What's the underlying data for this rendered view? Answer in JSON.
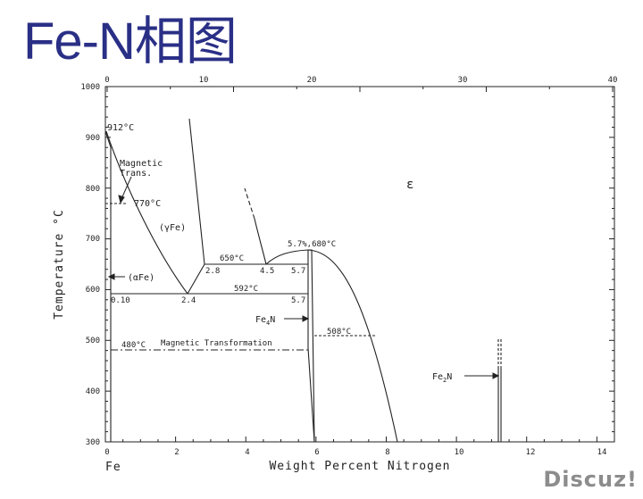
{
  "slide": {
    "title": "Fe-N相图",
    "watermark": "Discuz!"
  },
  "diagram": {
    "y_axis_title": "Temperature °C",
    "x_axis_title": "Weight Percent Nitrogen",
    "x_axis_left_label": "Fe",
    "x_bottom_ticks": [
      "0",
      "2",
      "4",
      "6",
      "8",
      "10",
      "12",
      "14"
    ],
    "x_top_ticks": [
      "0",
      "10",
      "20",
      "30",
      "40"
    ],
    "y_ticks": [
      "300",
      "400",
      "500",
      "600",
      "700",
      "800",
      "900",
      "1000"
    ],
    "labels": {
      "t912": "912°C",
      "magnetic_trans_1": "Magnetic",
      "magnetic_trans_2": "Trans.",
      "t770": "770°C",
      "gamma_fe": "(γFe)",
      "alpha_fe": "(αFe)",
      "epsilon": "ε",
      "t650": "650°C",
      "c28": "2.8",
      "c45": "4.5",
      "c57a": "5.7",
      "eutectoid_top": "5.7%,680°C",
      "c010": "0.10",
      "c24": "2.4",
      "t592": "592°C",
      "c57b": "5.7",
      "fe4n_main": "Fe",
      "fe4n_sub": "4",
      "fe4n_n": "N",
      "t508": "508°C",
      "t480": "480°C",
      "magnetic_transformation": "Magnetic Transformation",
      "fe2n_main": "Fe",
      "fe2n_sub": "2",
      "fe2n_n": "N"
    }
  }
}
